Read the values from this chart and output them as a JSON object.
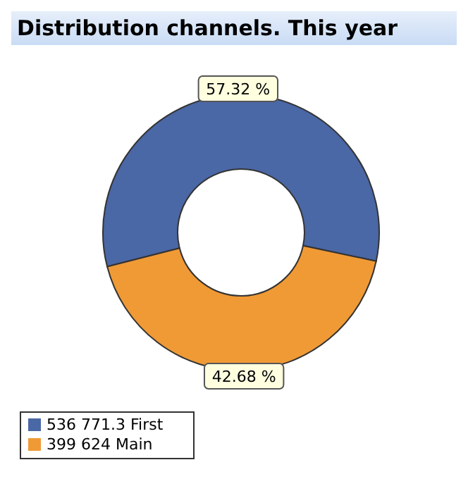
{
  "chart_data": {
    "type": "donut",
    "title": "Distribution channels. This year",
    "categories": [
      "536 771.3 First",
      "399 624 Main"
    ],
    "values": [
      57.32,
      42.68
    ],
    "colors": [
      "#4a67a6",
      "#f09a36"
    ],
    "value_labels": [
      "57.32 %",
      "42.68 %"
    ],
    "legend": "bottom left"
  }
}
